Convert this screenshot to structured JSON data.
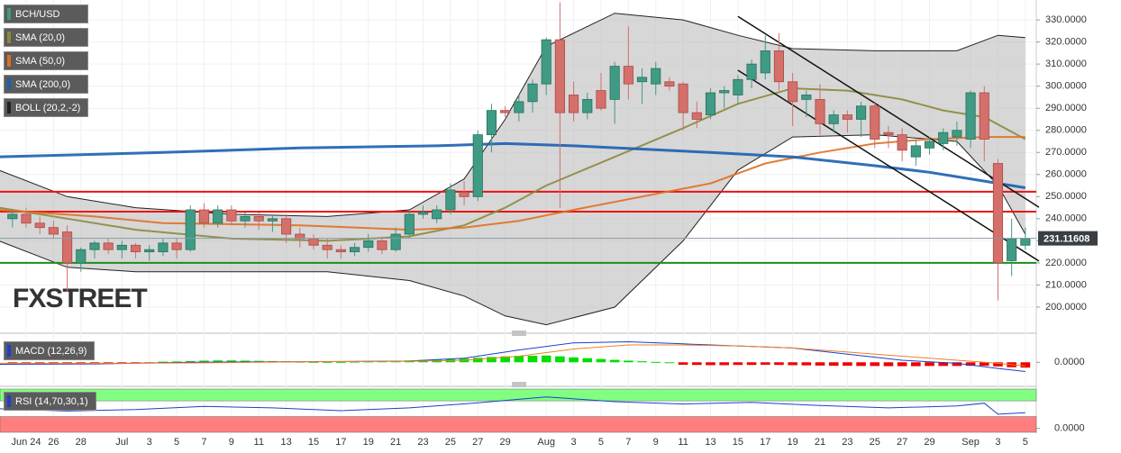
{
  "chart_data": [
    {
      "type": "candlestick",
      "name": "BCH/USD",
      "up_color": "#3f9b84",
      "down_color": "#d46f6a",
      "x": [
        -1,
        0,
        1,
        2,
        3,
        4,
        5,
        6,
        7,
        8,
        9,
        10,
        11,
        12,
        13,
        14,
        15,
        16,
        17,
        18,
        19,
        20,
        21,
        22,
        23,
        24,
        25,
        26,
        27,
        28,
        29,
        30,
        31,
        32,
        33,
        34,
        35,
        36,
        37,
        38,
        39,
        40,
        41,
        42,
        43,
        44,
        45,
        46,
        47,
        48,
        49,
        50,
        51,
        52,
        53,
        54,
        55,
        56,
        57,
        58,
        59,
        60,
        61,
        62,
        63,
        64,
        65,
        66,
        67,
        68,
        69,
        70,
        71,
        72,
        73
      ],
      "open": [
        240,
        242,
        238,
        236,
        234,
        220,
        226,
        229,
        226,
        228,
        225,
        225,
        229,
        226,
        244,
        238,
        244,
        239,
        241,
        239,
        240,
        233,
        231,
        228,
        226,
        225,
        227,
        230,
        226,
        233,
        242,
        240,
        244,
        252,
        250,
        278,
        289,
        288,
        293,
        301,
        321,
        296,
        288,
        298,
        294,
        309,
        302,
        301,
        302,
        301,
        288,
        287,
        297,
        296,
        303,
        306,
        316,
        302,
        294,
        294,
        283,
        287,
        285,
        291,
        279,
        278,
        268,
        272,
        274,
        277,
        276,
        297,
        265,
        221,
        228
      ],
      "high": [
        244,
        245,
        241,
        239,
        237,
        227,
        230,
        231,
        230,
        229,
        228,
        231,
        231,
        246,
        247,
        246,
        246,
        243,
        243,
        242,
        242,
        236,
        233,
        231,
        228,
        229,
        233,
        231,
        236,
        244,
        246,
        246,
        256,
        257,
        280,
        292,
        291,
        296,
        303,
        322,
        338,
        302,
        297,
        306,
        311,
        327,
        308,
        311,
        304,
        302,
        293,
        299,
        300,
        305,
        312,
        323,
        324,
        306,
        298,
        301,
        289,
        289,
        293,
        293,
        282,
        281,
        276,
        277,
        281,
        284,
        298,
        300,
        267,
        240,
        236
      ],
      "low": [
        236,
        236,
        233,
        231,
        207,
        216,
        222,
        224,
        222,
        222,
        221,
        223,
        222,
        225,
        236,
        236,
        237,
        236,
        235,
        234,
        229,
        227,
        226,
        222,
        222,
        223,
        225,
        224,
        225,
        231,
        240,
        238,
        242,
        246,
        248,
        270,
        286,
        284,
        288,
        296,
        245,
        284,
        285,
        289,
        283,
        294,
        292,
        296,
        298,
        280,
        281,
        285,
        290,
        292,
        299,
        303,
        298,
        282,
        286,
        278,
        279,
        279,
        277,
        272,
        272,
        266,
        264,
        269,
        271,
        273,
        272,
        266,
        203,
        214,
        226
      ],
      "close": [
        242,
        238,
        236,
        233,
        220,
        226,
        229,
        226,
        228,
        225,
        226,
        229,
        226,
        244,
        238,
        244,
        239,
        241,
        239,
        240,
        233,
        231,
        228,
        226,
        225,
        227,
        230,
        226,
        233,
        242,
        243,
        244,
        253,
        250,
        278,
        289,
        288,
        293,
        301,
        321,
        288,
        288,
        294,
        290,
        309,
        301,
        304,
        308,
        300,
        288,
        285,
        297,
        298,
        303,
        310,
        316,
        302,
        293,
        296,
        283,
        287,
        285,
        291,
        276,
        278,
        271,
        273,
        275,
        279,
        280,
        297,
        276,
        220,
        231,
        231.11608
      ],
      "overlays": [
        {
          "name": "SMA (20,0)",
          "color": "#8b8a3c",
          "x": [
            -2,
            3,
            8,
            15,
            22,
            28,
            32,
            35,
            38,
            43,
            48,
            52,
            56,
            60,
            64,
            67,
            70,
            73
          ],
          "values": [
            245,
            240,
            235,
            231,
            230,
            232,
            237,
            245,
            255,
            268,
            281,
            292,
            299,
            298,
            294,
            289,
            286,
            276
          ]
        },
        {
          "name": "SMA (50,0)",
          "color": "#e07020",
          "x": [
            -2,
            5,
            10,
            20,
            28,
            32,
            36,
            40,
            45,
            50,
            54,
            58,
            62,
            66,
            70,
            73
          ],
          "values": [
            244,
            241,
            238,
            237,
            235,
            236,
            239,
            244,
            250,
            256,
            265,
            270,
            274,
            276,
            277,
            277
          ]
        },
        {
          "name": "SMA (200,0)",
          "color": "#1b5fb0",
          "x": [
            -2,
            10,
            20,
            30,
            35,
            40,
            50,
            56,
            62,
            66,
            70,
            73
          ],
          "values": [
            268,
            270,
            272,
            273,
            274,
            273,
            270,
            268,
            264,
            261,
            257,
            254
          ]
        },
        {
          "name": "BOLL (20,2,-2)",
          "color": "#222222",
          "x": [
            -2,
            3,
            8,
            15,
            22,
            28,
            32,
            35,
            38,
            43,
            48,
            52,
            56,
            62,
            68,
            71,
            73
          ],
          "upper": [
            262,
            250,
            245,
            242,
            241,
            244,
            258,
            285,
            318,
            333,
            330,
            323,
            317,
            316,
            316,
            323,
            322
          ],
          "lower": [
            230,
            218,
            216,
            216,
            216,
            212,
            205,
            196,
            192,
            200,
            230,
            262,
            277,
            278,
            275,
            255,
            233
          ]
        }
      ],
      "levels": [
        {
          "value": 252.2,
          "color": "#ee1111"
        },
        {
          "value": 243.2,
          "color": "#ee1111"
        },
        {
          "value": 220,
          "color": "#1e8c1e"
        }
      ],
      "trendlines": [
        {
          "x": [
            52,
            74
          ],
          "values": [
            331.6,
            245.2
          ]
        },
        {
          "x": [
            52,
            74
          ],
          "values": [
            307.2,
            220.8
          ]
        }
      ],
      "xlim": [
        -1.91,
        73.8
      ],
      "ylim": [
        190.2,
        339
      ],
      "yticks": [
        {
          "value": 200,
          "label": "200.0000"
        },
        {
          "value": 210,
          "label": "210.0000"
        },
        {
          "value": 220,
          "label": "220.0000"
        },
        {
          "value": 230,
          "label": "230.0000"
        },
        {
          "value": 240,
          "label": "240.0000"
        },
        {
          "value": 250,
          "label": "250.0000"
        },
        {
          "value": 260,
          "label": "260.0000"
        },
        {
          "value": 270,
          "label": "270.0000"
        },
        {
          "value": 280,
          "label": "280.0000"
        },
        {
          "value": 290,
          "label": "290.0000"
        },
        {
          "value": 300,
          "label": "300.0000"
        },
        {
          "value": 310,
          "label": "310.0000"
        },
        {
          "value": 320,
          "label": "320.0000"
        },
        {
          "value": 330,
          "label": "330.0000"
        }
      ],
      "xticks": [
        {
          "value": 0,
          "label": "Jun 24"
        },
        {
          "value": 2,
          "label": "26"
        },
        {
          "value": 4,
          "label": "28"
        },
        {
          "value": 7,
          "label": "Jul"
        },
        {
          "value": 9,
          "label": "3"
        },
        {
          "value": 11,
          "label": "5"
        },
        {
          "value": 13,
          "label": "7"
        },
        {
          "value": 15,
          "label": "9"
        },
        {
          "value": 17,
          "label": "11"
        },
        {
          "value": 19,
          "label": "13"
        },
        {
          "value": 21,
          "label": "15"
        },
        {
          "value": 23,
          "label": "17"
        },
        {
          "value": 25,
          "label": "19"
        },
        {
          "value": 27,
          "label": "21"
        },
        {
          "value": 29,
          "label": "23"
        },
        {
          "value": 31,
          "label": "25"
        },
        {
          "value": 33,
          "label": "27"
        },
        {
          "value": 35,
          "label": "29"
        },
        {
          "value": 38,
          "label": "Aug"
        },
        {
          "value": 40,
          "label": "3"
        },
        {
          "value": 42,
          "label": "5"
        },
        {
          "value": 44,
          "label": "7"
        },
        {
          "value": 46,
          "label": "9"
        },
        {
          "value": 48,
          "label": "11"
        },
        {
          "value": 50,
          "label": "13"
        },
        {
          "value": 52,
          "label": "15"
        },
        {
          "value": 54,
          "label": "17"
        },
        {
          "value": 56,
          "label": "19"
        },
        {
          "value": 58,
          "label": "21"
        },
        {
          "value": 60,
          "label": "23"
        },
        {
          "value": 62,
          "label": "25"
        },
        {
          "value": 64,
          "label": "27"
        },
        {
          "value": 66,
          "label": "29"
        },
        {
          "value": 69,
          "label": "Sep"
        },
        {
          "value": 71,
          "label": "3"
        },
        {
          "value": 73,
          "label": "5"
        }
      ],
      "watermark": "FXSTREET"
    },
    {
      "type": "macd",
      "title": "MACD (12,26,9)",
      "ylim": [
        -10,
        12
      ],
      "yticks": [
        {
          "value": 0,
          "label": "0.0000"
        }
      ],
      "histogram": {
        "up_color": "#00dd00",
        "down_color": "#ee0000",
        "x": [
          -1,
          0,
          1,
          2,
          3,
          4,
          5,
          6,
          7,
          8,
          9,
          10,
          11,
          12,
          13,
          14,
          15,
          16,
          17,
          18,
          19,
          20,
          21,
          22,
          23,
          24,
          25,
          26,
          27,
          28,
          29,
          30,
          31,
          32,
          33,
          34,
          35,
          36,
          37,
          38,
          39,
          40,
          41,
          42,
          43,
          44,
          45,
          46,
          47,
          48,
          49,
          50,
          51,
          52,
          53,
          54,
          55,
          56,
          57,
          58,
          59,
          60,
          61,
          62,
          63,
          64,
          65,
          66,
          67,
          68,
          69,
          70,
          71,
          72,
          73
        ],
        "values": [
          -0.6,
          -0.6,
          -0.7,
          -0.7,
          -0.8,
          -0.7,
          -0.6,
          -0.6,
          -0.5,
          -0.4,
          -0.3,
          0.3,
          0.4,
          0.6,
          0.8,
          0.9,
          0.9,
          0.8,
          0.7,
          0.6,
          0.5,
          0.3,
          0.2,
          0.2,
          0.2,
          0.3,
          0.4,
          0.5,
          0.7,
          0.9,
          1.1,
          1.3,
          1.5,
          1.8,
          2.2,
          2.6,
          2.9,
          3.1,
          3.2,
          3.3,
          2.9,
          2.4,
          2.0,
          1.6,
          1.2,
          0.8,
          0.5,
          0.2,
          0,
          -1.2,
          -1.3,
          -1.4,
          -1.4,
          -1.3,
          -1.3,
          -1.2,
          -1.3,
          -1.4,
          -1.5,
          -1.6,
          -1.7,
          -1.7,
          -1.8,
          -1.8,
          -1.9,
          -1.9,
          -1.9,
          -1.8,
          -1.8,
          -1.8,
          -1.7,
          -1.7,
          -2.0,
          -2.4,
          -2.6
        ]
      },
      "series": [
        {
          "color": "#1c3fd0",
          "x": [
            -2,
            5,
            12,
            20,
            28,
            32,
            36,
            40,
            44,
            48,
            52,
            56,
            60,
            64,
            68,
            71,
            73
          ],
          "values": [
            -1,
            -0.8,
            0,
            0.3,
            0.6,
            2,
            6,
            9.5,
            10,
            9,
            8,
            7,
            4,
            1,
            -0.5,
            -3,
            -4.5
          ]
        },
        {
          "color": "#f08020",
          "x": [
            -2,
            5,
            12,
            20,
            28,
            32,
            36,
            40,
            44,
            48,
            52,
            56,
            60,
            64,
            68,
            71,
            73
          ],
          "values": [
            -0.5,
            -0.5,
            -0.3,
            0.2,
            0.5,
            1,
            3,
            6.5,
            8.5,
            8.5,
            8,
            7,
            5,
            3,
            1,
            -0.5,
            -1.8
          ]
        }
      ]
    },
    {
      "type": "rsi",
      "title": "RSI (14,70,30,1)",
      "ylim": [
        -10,
        100
      ],
      "yticks": [
        {
          "value": 0,
          "label": "0.0000"
        }
      ],
      "color": "#1c3fd0",
      "bands": [
        {
          "from": 70,
          "to": 100,
          "color": "#80ff80"
        },
        {
          "from": -10,
          "to": 30,
          "color": "#ff7f7f"
        }
      ],
      "x": [
        -2,
        3,
        8,
        13,
        18,
        23,
        28,
        33,
        38,
        43,
        48,
        53,
        58,
        63,
        68,
        70,
        71,
        73
      ],
      "values": [
        50,
        44,
        48,
        56,
        52,
        45,
        52,
        65,
        80,
        68,
        62,
        66,
        58,
        52,
        57,
        64,
        36,
        40
      ]
    }
  ]
}
